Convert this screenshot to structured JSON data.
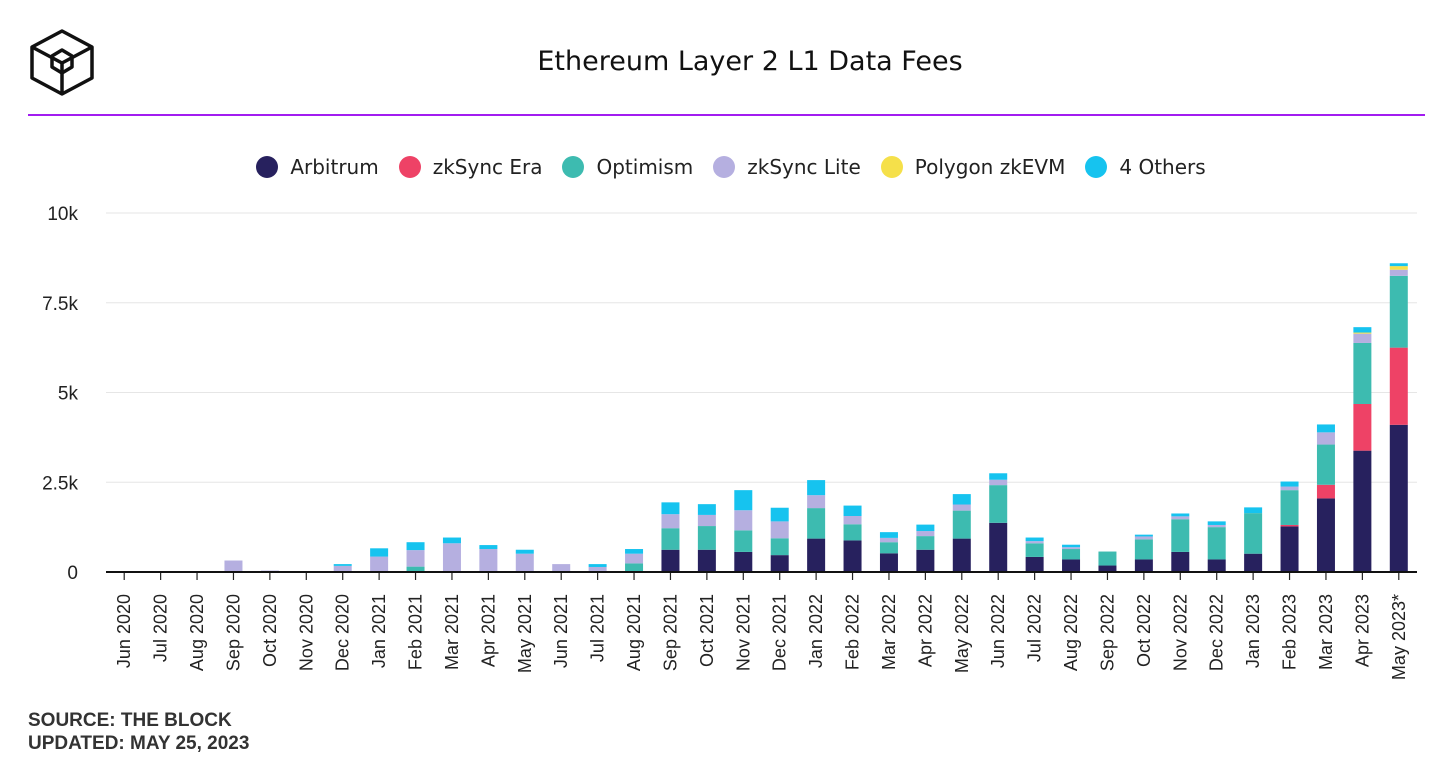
{
  "header": {
    "title": "Ethereum Layer 2 L1 Data Fees"
  },
  "footer": {
    "source": "SOURCE: THE BLOCK",
    "updated": "UPDATED: MAY 25, 2023"
  },
  "colors": {
    "accent_rule": "#a21cf0"
  },
  "chart_data": {
    "type": "bar",
    "stacked": true,
    "title": "Ethereum Layer 2 L1 Data Fees",
    "xlabel": "",
    "ylabel": "",
    "ylim": [
      0,
      10000
    ],
    "y_ticks": [
      {
        "value": 0,
        "label": "0"
      },
      {
        "value": 2500,
        "label": "2.5k"
      },
      {
        "value": 5000,
        "label": "5k"
      },
      {
        "value": 7500,
        "label": "7.5k"
      },
      {
        "value": 10000,
        "label": "10k"
      }
    ],
    "grid": true,
    "legend_position": "top-center",
    "categories": [
      "Jun 2020",
      "Jul 2020",
      "Aug 2020",
      "Sep 2020",
      "Oct 2020",
      "Nov 2020",
      "Dec 2020",
      "Jan 2021",
      "Feb 2021",
      "Mar 2021",
      "Apr 2021",
      "May 2021",
      "Jun 2021",
      "Jul 2021",
      "Aug 2021",
      "Sep 2021",
      "Oct 2021",
      "Nov 2021",
      "Dec 2021",
      "Jan 2022",
      "Feb 2022",
      "Mar 2022",
      "Apr 2022",
      "May 2022",
      "Jun 2022",
      "Jul 2022",
      "Aug 2022",
      "Sep 2022",
      "Oct 2022",
      "Nov 2022",
      "Dec 2022",
      "Jan 2023",
      "Feb 2023",
      "Mar 2023",
      "Apr 2023",
      "May 2023*"
    ],
    "series": [
      {
        "name": "Arbitrum",
        "color": "#27215e",
        "values": [
          0,
          0,
          0,
          0,
          0,
          0,
          0,
          0,
          0,
          0,
          0,
          0,
          0,
          0,
          0,
          620,
          620,
          560,
          470,
          930,
          880,
          520,
          620,
          930,
          1370,
          420,
          350,
          180,
          350,
          560,
          350,
          510,
          1270,
          2050,
          3380,
          4100
        ]
      },
      {
        "name": "zkSync Era",
        "color": "#ee4266",
        "values": [
          0,
          0,
          0,
          0,
          0,
          0,
          0,
          0,
          0,
          0,
          0,
          0,
          0,
          0,
          0,
          0,
          0,
          0,
          0,
          0,
          0,
          0,
          0,
          0,
          0,
          0,
          0,
          0,
          0,
          0,
          0,
          0,
          40,
          380,
          1300,
          2150
        ]
      },
      {
        "name": "Optimism",
        "color": "#3dbbb0",
        "values": [
          0,
          0,
          0,
          0,
          0,
          0,
          0,
          0,
          150,
          0,
          0,
          0,
          0,
          30,
          240,
          600,
          660,
          600,
          470,
          850,
          450,
          310,
          380,
          780,
          1050,
          380,
          290,
          390,
          560,
          910,
          900,
          1130,
          970,
          1120,
          1700,
          2000
        ]
      },
      {
        "name": "zkSync Lite",
        "color": "#b5afe0",
        "values": [
          0,
          0,
          0,
          320,
          40,
          0,
          170,
          430,
          460,
          800,
          640,
          510,
          220,
          110,
          270,
          390,
          310,
          560,
          470,
          360,
          230,
          120,
          140,
          170,
          150,
          60,
          50,
          0,
          80,
          80,
          60,
          0,
          100,
          340,
          260,
          170
        ]
      },
      {
        "name": "Polygon zkEVM",
        "color": "#f5e04a",
        "values": [
          0,
          0,
          0,
          0,
          0,
          0,
          0,
          0,
          0,
          0,
          0,
          0,
          0,
          0,
          0,
          0,
          0,
          0,
          0,
          0,
          0,
          0,
          0,
          0,
          0,
          0,
          0,
          0,
          0,
          0,
          0,
          0,
          0,
          0,
          30,
          100
        ]
      },
      {
        "name": "4 Others",
        "color": "#16c3ef",
        "values": [
          0,
          0,
          0,
          0,
          0,
          0,
          50,
          230,
          220,
          160,
          110,
          110,
          0,
          80,
          130,
          330,
          300,
          560,
          380,
          420,
          290,
          160,
          180,
          290,
          180,
          100,
          70,
          0,
          50,
          80,
          100,
          160,
          140,
          220,
          150,
          80
        ]
      }
    ]
  }
}
